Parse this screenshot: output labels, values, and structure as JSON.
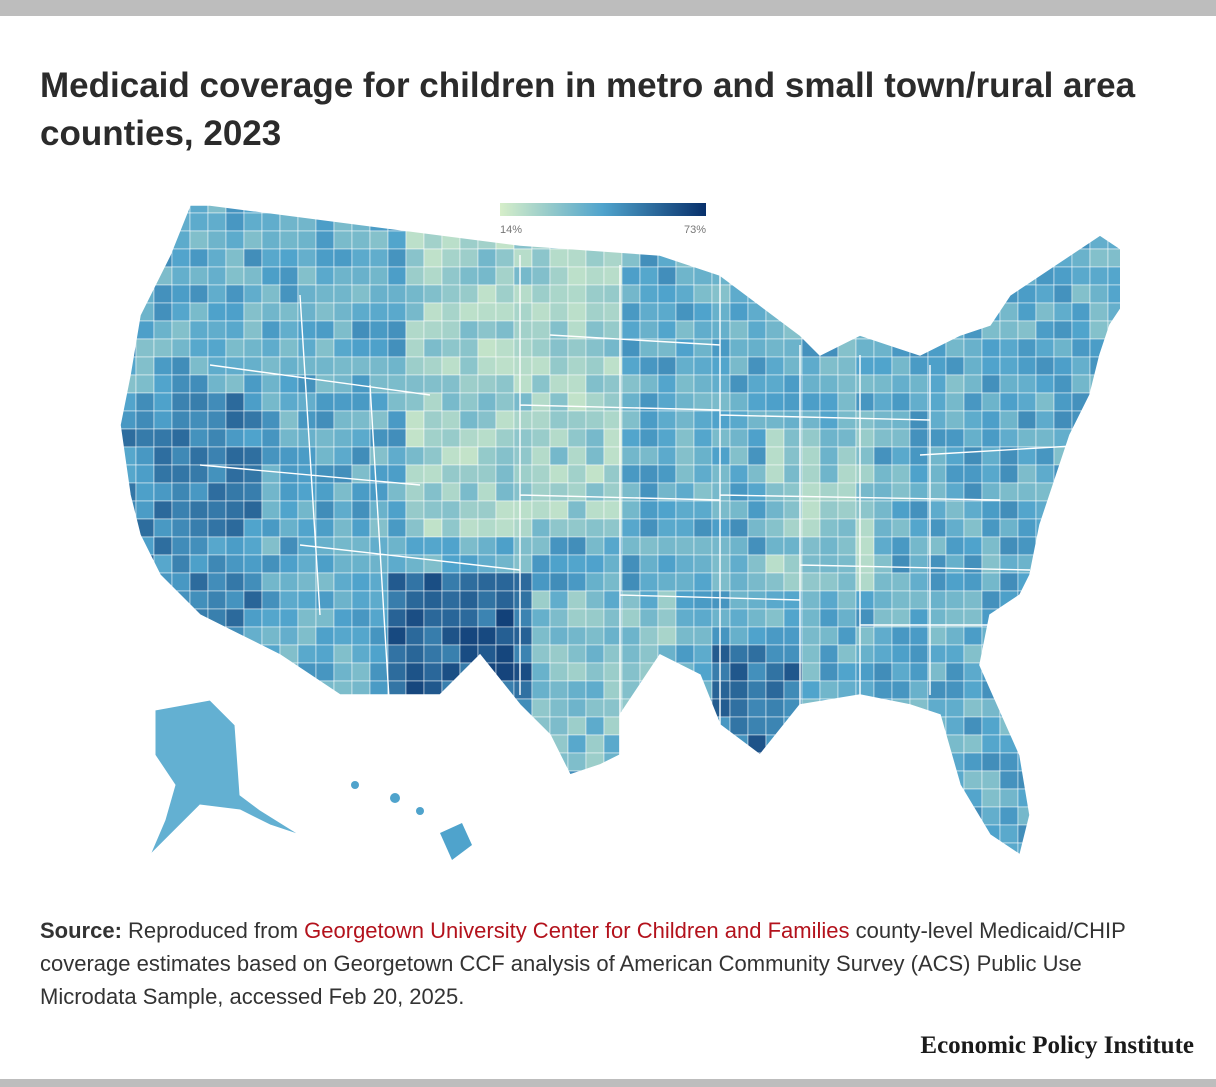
{
  "title": "Medicaid coverage for children in metro and small town/rural area counties, 2023",
  "legend": {
    "min_label": "14%",
    "max_label": "73%",
    "min_value": 14,
    "max_value": 73,
    "color_low": "#d6eec9",
    "color_mid": "#4fa3cc",
    "color_high": "#08306b"
  },
  "source": {
    "label": "Source:",
    "pre_link": "Reproduced from",
    "link_text": "Georgetown University Center for Children and Families",
    "post_link": "county-level Medicaid/CHIP coverage estimates based on Georgetown CCF analysis of American Community Survey (ACS) Public Use Microdata Sample, accessed Feb 20, 2025."
  },
  "brand": "Economic Policy Institute",
  "colors": {
    "top_bar": "#bdbdbd",
    "link": "#b3121c",
    "no_data": "#dcdcdc"
  }
}
